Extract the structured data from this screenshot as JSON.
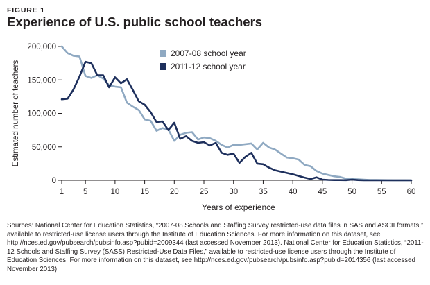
{
  "figure": {
    "label": "FIGURE 1",
    "title": "Experience of U.S. public school teachers"
  },
  "colors": {
    "series_2007": "#8fa9c2",
    "series_2011": "#1d2f5c",
    "axis": "#231f20"
  },
  "chart_data": {
    "type": "line",
    "title": "Experience of U.S. public school teachers",
    "xlabel": "Years of experience",
    "ylabel": "Estimated number of teachers",
    "xlim": [
      1,
      60
    ],
    "ylim": [
      0,
      200000
    ],
    "x_ticks": [
      1,
      5,
      10,
      15,
      20,
      25,
      30,
      35,
      40,
      45,
      50,
      55,
      60
    ],
    "y_ticks": [
      0,
      50000,
      100000,
      150000,
      200000
    ],
    "y_tick_labels": [
      "0",
      "50,000",
      "100,000",
      "150,000",
      "200,000"
    ],
    "grid": false,
    "legend_position": "top-center",
    "x": [
      1,
      2,
      3,
      4,
      5,
      6,
      7,
      8,
      9,
      10,
      11,
      12,
      13,
      14,
      15,
      16,
      17,
      18,
      19,
      20,
      21,
      22,
      23,
      24,
      25,
      26,
      27,
      28,
      29,
      30,
      31,
      32,
      33,
      34,
      35,
      36,
      37,
      38,
      39,
      40,
      41,
      42,
      43,
      44,
      45,
      46,
      47,
      48,
      49,
      50,
      51,
      52,
      53,
      54,
      55,
      56,
      57,
      58,
      59,
      60
    ],
    "series": [
      {
        "name": "2007-08 school year",
        "color": "#8fa9c2",
        "values": [
          200000,
          190000,
          186000,
          185000,
          156000,
          153000,
          157000,
          152000,
          142000,
          140000,
          139000,
          116000,
          110000,
          105000,
          91000,
          89000,
          74000,
          78000,
          76000,
          59000,
          68000,
          71000,
          72000,
          61000,
          64000,
          63000,
          59000,
          53000,
          49000,
          53000,
          53000,
          54000,
          55000,
          46000,
          56000,
          49000,
          46000,
          40000,
          34000,
          33000,
          31000,
          23000,
          21000,
          14000,
          10000,
          8000,
          6000,
          5000,
          2500,
          2000,
          1500,
          1000,
          500,
          400,
          300,
          200,
          100,
          100,
          100,
          0
        ]
      },
      {
        "name": "2011-12 school year",
        "color": "#1d2f5c",
        "values": [
          121000,
          122000,
          136000,
          155000,
          177000,
          175000,
          157000,
          157000,
          139000,
          154000,
          145000,
          151000,
          135000,
          118000,
          113000,
          102000,
          87000,
          88000,
          75000,
          86000,
          62000,
          66000,
          59000,
          56000,
          57000,
          52000,
          56000,
          41000,
          38000,
          40000,
          26000,
          35000,
          41000,
          25000,
          24000,
          19000,
          15000,
          13000,
          11000,
          9000,
          6500,
          4000,
          2000,
          4500,
          1000,
          500,
          300,
          300,
          200,
          1000,
          300,
          0,
          0,
          0,
          0,
          0,
          0,
          0,
          0,
          0
        ]
      }
    ]
  },
  "sources": "Sources: National Center for Education Statistics, “2007-08 Schools and Staffing Survey restricted-use data files in SAS and ASCII formats,” available to restricted-use license users through the Institute of Education Sciences.  For more information on this dataset, see http://nces.ed.gov/pubsearch/pubsinfo.asp?pubid=2009344 (last accessed November 2013). National Center for Education Statistics, “2011-12 Schools and Staffing Survey (SASS) Restricted-Use Data Files,” available to restricted-use license users through the Institute of Education Sciences. For more information on this dataset, see http://nces.ed.gov/pubsearch/pubsinfo.asp?pubid=2014356 (last accessed November 2013)."
}
